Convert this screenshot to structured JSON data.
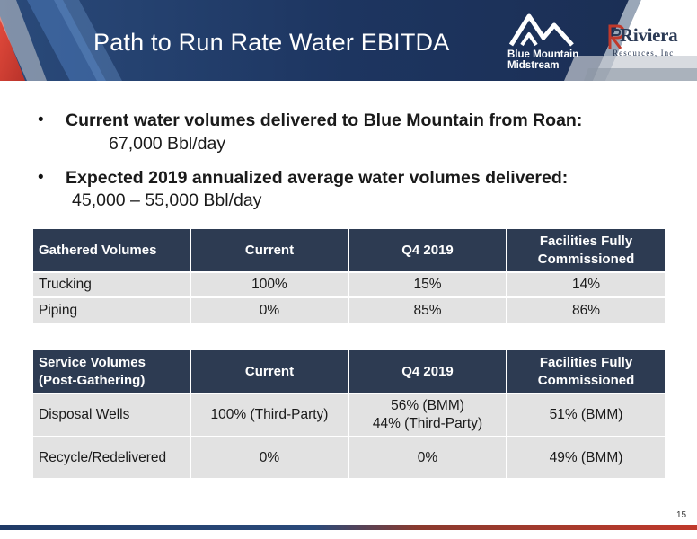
{
  "header": {
    "title": "Path to Run Rate Water EBITDA",
    "logos": {
      "blue_mountain": {
        "line1": "Blue Mountain",
        "line2": "Midstream"
      },
      "riviera": {
        "wordmark": "Riviera",
        "subtitle": "Resources, Inc."
      }
    }
  },
  "bullets": [
    {
      "heading": "Current water volumes delivered to Blue Mountain from Roan:",
      "value": "67,000 Bbl/day"
    },
    {
      "heading": "Expected 2019 annualized average water volumes delivered:",
      "value": "45,000 – 55,000 Bbl/day"
    }
  ],
  "tables": {
    "gathered": {
      "headers": [
        "Gathered Volumes",
        "Current",
        "Q4 2019",
        "Facilities Fully Commissioned"
      ],
      "rows": [
        [
          "Trucking",
          "100%",
          "15%",
          "14%"
        ],
        [
          "Piping",
          "0%",
          "85%",
          "86%"
        ]
      ]
    },
    "service": {
      "header_first_lines": [
        "Service Volumes",
        "(Post-Gathering)"
      ],
      "headers": [
        "Service Volumes (Post-Gathering)",
        "Current",
        "Q4 2019",
        "Facilities Fully Commissioned"
      ],
      "rows": [
        {
          "label": "Disposal Wells",
          "current": "100% (Third-Party)",
          "q4_lines": [
            "56% (BMM)",
            "44% (Third-Party)"
          ],
          "facilities": "51% (BMM)"
        },
        {
          "label": "Recycle/Redelivered",
          "current": "0%",
          "q4_lines": [
            "0%"
          ],
          "facilities": "49% (BMM)"
        }
      ]
    }
  },
  "footer": {
    "page_number": "15"
  },
  "colors": {
    "banner_navy": "#1f3a66",
    "table_header": "#2d3b52",
    "table_cell": "#e2e2e2",
    "accent_red": "#c0392b"
  }
}
